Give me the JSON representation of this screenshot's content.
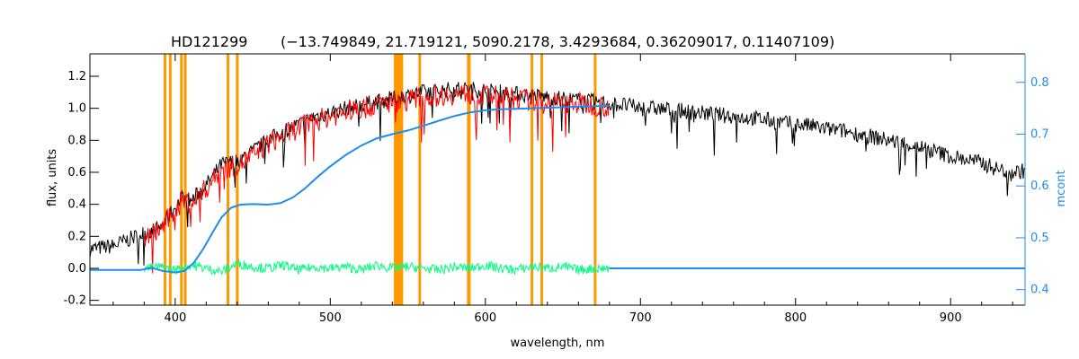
{
  "chart_data": {
    "type": "line",
    "title": "HD121299",
    "subtitle": "(−13.749849, 21.719121, 5090.2178, 3.4293684, 0.36209017, 0.11407109)",
    "xlabel": "wavelength, nm",
    "ylabel": "flux, units",
    "y2label": "mcont",
    "xlim": [
      345,
      948
    ],
    "ylim": [
      -0.23,
      1.34
    ],
    "y2lim": [
      0.37,
      0.855
    ],
    "x_ticks": [
      400,
      500,
      600,
      700,
      800,
      900
    ],
    "y_ticks": [
      "-0.2",
      "0.0",
      "0.2",
      "0.4",
      "0.6",
      "0.8",
      "1.0",
      "1.2"
    ],
    "y2_ticks": [
      "0.4",
      "0.5",
      "0.6",
      "0.7",
      "0.8"
    ],
    "colors": {
      "observed": "#000000",
      "model": "#ff0000",
      "masked_model": "#ffff00",
      "residual": "#00ff7f",
      "continuum": "#1e8cf0",
      "mask_lines": "#ff9900"
    },
    "mask_lines": [
      393.4,
      396.8,
      404.0,
      406.5,
      434.0,
      440.0,
      557.7,
      589.0,
      589.6,
      630.0,
      636.4,
      670.8
    ],
    "mask_band": [
      541,
      547
    ],
    "series": [
      {
        "key": "observed",
        "axis": "left",
        "x": [
          345,
          360,
          375,
          380,
          390,
          400,
          405,
          410,
          420,
          430,
          440,
          450,
          460,
          470,
          480,
          490,
          500,
          510,
          520,
          530,
          540,
          550,
          560,
          570,
          580,
          590,
          600,
          610,
          620,
          630,
          640,
          650,
          660,
          670,
          680,
          690,
          700,
          710,
          720,
          730,
          740,
          750,
          760,
          770,
          780,
          790,
          800,
          810,
          820,
          830,
          840,
          850,
          860,
          870,
          880,
          890,
          900,
          910,
          920,
          930,
          940,
          948
        ],
        "y": [
          0.12,
          0.14,
          0.2,
          0.22,
          0.25,
          0.38,
          0.45,
          0.42,
          0.52,
          0.65,
          0.67,
          0.73,
          0.8,
          0.86,
          0.9,
          0.95,
          0.97,
          1.0,
          1.02,
          1.04,
          1.06,
          1.08,
          1.1,
          1.11,
          1.12,
          1.12,
          1.11,
          1.1,
          1.09,
          1.08,
          1.07,
          1.06,
          1.05,
          1.04,
          1.03,
          1.02,
          1.0,
          1.0,
          0.99,
          0.98,
          0.97,
          0.96,
          0.95,
          0.94,
          0.93,
          0.91,
          0.9,
          0.89,
          0.87,
          0.86,
          0.84,
          0.82,
          0.8,
          0.78,
          0.76,
          0.73,
          0.7,
          0.68,
          0.66,
          0.62,
          0.6,
          0.61
        ]
      },
      {
        "key": "model",
        "axis": "left",
        "x": [
          380,
          390,
          400,
          405,
          410,
          420,
          430,
          440,
          450,
          460,
          470,
          480,
          490,
          500,
          510,
          520,
          530,
          540,
          550,
          560,
          570,
          580,
          590,
          600,
          610,
          620,
          630,
          640,
          650,
          660,
          670,
          680
        ],
        "y": [
          0.18,
          0.24,
          0.36,
          0.43,
          0.4,
          0.5,
          0.62,
          0.64,
          0.7,
          0.78,
          0.83,
          0.88,
          0.92,
          0.95,
          0.98,
          1.0,
          1.02,
          1.04,
          1.05,
          1.07,
          1.08,
          1.09,
          1.09,
          1.08,
          1.07,
          1.06,
          1.05,
          1.04,
          1.03,
          1.03,
          1.02,
          1.01
        ]
      },
      {
        "key": "residual",
        "axis": "left",
        "x": [
          380,
          390,
          400,
          410,
          420,
          430,
          440,
          450,
          460,
          470,
          480,
          490,
          500,
          510,
          520,
          530,
          540,
          550,
          560,
          570,
          580,
          590,
          600,
          610,
          620,
          630,
          640,
          650,
          660,
          670,
          680
        ],
        "y": [
          0.0,
          0.01,
          -0.01,
          0.02,
          0.0,
          -0.02,
          0.03,
          0.01,
          0.0,
          0.02,
          -0.01,
          0.01,
          0.0,
          0.01,
          -0.01,
          0.02,
          0.0,
          0.01,
          0.0,
          -0.01,
          0.01,
          0.0,
          0.02,
          0.0,
          -0.01,
          0.01,
          0.0,
          0.01,
          -0.01,
          0.0,
          0.0
        ]
      },
      {
        "key": "continuum",
        "axis": "right",
        "x": [
          345,
          378,
          385,
          392,
          400,
          406,
          412,
          418,
          424,
          430,
          436,
          442,
          450,
          460,
          468,
          476,
          484,
          492,
          500,
          510,
          520,
          530,
          540,
          550,
          560,
          570,
          580,
          590,
          600,
          610,
          620,
          630,
          640,
          650,
          660,
          670,
          680
        ],
        "y": [
          0.438,
          0.438,
          0.442,
          0.436,
          0.433,
          0.436,
          0.452,
          0.478,
          0.51,
          0.54,
          0.558,
          0.564,
          0.565,
          0.564,
          0.567,
          0.578,
          0.596,
          0.618,
          0.638,
          0.66,
          0.678,
          0.692,
          0.7,
          0.707,
          0.716,
          0.726,
          0.735,
          0.742,
          0.746,
          0.748,
          0.749,
          0.75,
          0.751,
          0.752,
          0.753,
          0.754,
          0.755
        ]
      },
      {
        "key": "continuum_tail",
        "axis": "left",
        "x": [
          680,
          948
        ],
        "y": [
          0.0,
          0.0
        ]
      }
    ]
  }
}
